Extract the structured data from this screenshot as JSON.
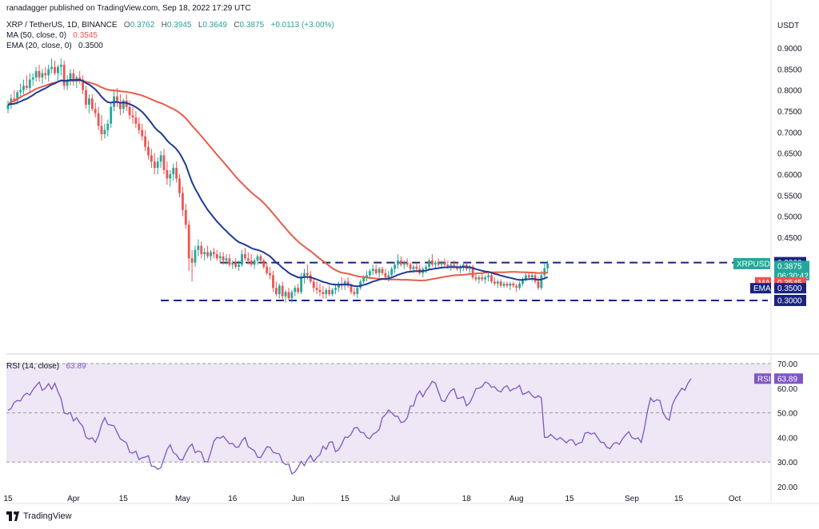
{
  "publisher": "ranadagger published on TradingView.com, Sep 18, 2022 17:29 UTC",
  "legend": {
    "symbol": "XRP / TetherUS, 1D, BINANCE",
    "o_label": "O",
    "o": "0.3762",
    "h_label": "H",
    "h": "0.3945",
    "l_label": "L",
    "l": "0.3649",
    "c_label": "C",
    "c": "0.3875",
    "change": "+0.0113 (+3.00%)",
    "ma_label": "MA (50, close, 0)",
    "ma_value": "0.3545",
    "ema_label": "EMA (20, close, 0)",
    "ema_value": "0.3500",
    "rsi_label": "RSI (14, close)",
    "rsi_value": "63.89"
  },
  "footer": {
    "brand": "TradingView"
  },
  "colors": {
    "up": "#26a69a",
    "down": "#ef5350",
    "ma": "#e85c4a",
    "ema": "#1f3a93",
    "rsi": "#7e57c2",
    "rsi_band": "#ede7f6"
  },
  "chart_data": {
    "type": "candlestick",
    "symbol": "XRPUSDT",
    "currency": "USDT",
    "x_axis_ticks": [
      "15",
      "Apr",
      "15",
      "May",
      "16",
      "Jun",
      "15",
      "Jul",
      "18",
      "Aug",
      "15",
      "Sep",
      "15",
      "Oct"
    ],
    "price_axis_ticks": [
      "0.9000",
      "0.8500",
      "0.8000",
      "0.7500",
      "0.7000",
      "0.6500",
      "0.6000",
      "0.5500",
      "0.5000",
      "0.4500"
    ],
    "price_range": [
      0.27,
      0.92
    ],
    "price_labels": [
      {
        "text": "0.3900",
        "value": 0.39,
        "style": "level"
      },
      {
        "text": "XRPUSDT",
        "value": 0.3875,
        "style": "symbol"
      },
      {
        "text": "0.3875",
        "value": 0.3875,
        "style": "last"
      },
      {
        "text": "06:30:42",
        "value": 0.3875,
        "style": "timer"
      },
      {
        "text": "MA",
        "value": 0.3545,
        "style": "ma_tag"
      },
      {
        "text": "0.3545",
        "value": 0.3545,
        "style": "ma"
      },
      {
        "text": "EMA",
        "value": 0.35,
        "style": "ema_tag"
      },
      {
        "text": "0.3500",
        "value": 0.35,
        "style": "ema"
      },
      {
        "text": "0.3000",
        "value": 0.3,
        "style": "level"
      }
    ],
    "levels": [
      {
        "value": 0.39,
        "from_day": 68,
        "style": "dashed"
      },
      {
        "value": 0.3,
        "from_day": 49,
        "style": "dashed"
      }
    ],
    "rsi": {
      "axis_ticks": [
        "70.00",
        "60.00",
        "50.00",
        "40.00",
        "30.00",
        "20.00"
      ],
      "range": [
        18,
        72
      ],
      "band": [
        30,
        70
      ],
      "mid": 50,
      "label": "RSI",
      "value_text": "63.89",
      "keypoints": [
        [
          0,
          51
        ],
        [
          3,
          55
        ],
        [
          6,
          58
        ],
        [
          9,
          61
        ],
        [
          12,
          60
        ],
        [
          15,
          62
        ],
        [
          18,
          50
        ],
        [
          22,
          48
        ],
        [
          25,
          40
        ],
        [
          28,
          38
        ],
        [
          31,
          48
        ],
        [
          35,
          42
        ],
        [
          39,
          34
        ],
        [
          44,
          32
        ],
        [
          48,
          27
        ],
        [
          52,
          37
        ],
        [
          55,
          31
        ],
        [
          58,
          36
        ],
        [
          62,
          34
        ],
        [
          64,
          30
        ],
        [
          67,
          40
        ],
        [
          70,
          39
        ],
        [
          73,
          36
        ],
        [
          76,
          40
        ],
        [
          80,
          32
        ],
        [
          84,
          36
        ],
        [
          88,
          30
        ],
        [
          92,
          26
        ],
        [
          96,
          31
        ],
        [
          100,
          33
        ],
        [
          103,
          38
        ],
        [
          106,
          35
        ],
        [
          109,
          40
        ],
        [
          112,
          44
        ],
        [
          115,
          40
        ],
        [
          118,
          42
        ],
        [
          120,
          48
        ],
        [
          123,
          50
        ],
        [
          126,
          46
        ],
        [
          128,
          48
        ],
        [
          131,
          57
        ],
        [
          134,
          59
        ],
        [
          137,
          62
        ],
        [
          139,
          55
        ],
        [
          142,
          59
        ],
        [
          145,
          56
        ],
        [
          148,
          54
        ],
        [
          151,
          60
        ],
        [
          154,
          62
        ],
        [
          157,
          59
        ],
        [
          160,
          61
        ],
        [
          163,
          60
        ],
        [
          166,
          58
        ],
        [
          168,
          57
        ],
        [
          171,
          56
        ],
        [
          172,
          40
        ],
        [
          175,
          40
        ],
        [
          178,
          39
        ],
        [
          181,
          39
        ],
        [
          184,
          38
        ],
        [
          186,
          42
        ],
        [
          189,
          40
        ],
        [
          192,
          36
        ],
        [
          195,
          38
        ],
        [
          198,
          41
        ],
        [
          200,
          40
        ],
        [
          203,
          38
        ],
        [
          206,
          56
        ],
        [
          209,
          55
        ],
        [
          210,
          50
        ],
        [
          212,
          47
        ],
        [
          214,
          56
        ],
        [
          216,
          60
        ],
        [
          218,
          62
        ],
        [
          219,
          63.89
        ]
      ]
    },
    "ohlc": [
      [
        0.755,
        0.775,
        0.745,
        0.765
      ],
      [
        0.765,
        0.79,
        0.755,
        0.78
      ],
      [
        0.78,
        0.8,
        0.77,
        0.775
      ],
      [
        0.775,
        0.8,
        0.765,
        0.795
      ],
      [
        0.795,
        0.815,
        0.78,
        0.8
      ],
      [
        0.8,
        0.825,
        0.79,
        0.81
      ],
      [
        0.81,
        0.835,
        0.8,
        0.805
      ],
      [
        0.805,
        0.84,
        0.795,
        0.825
      ],
      [
        0.825,
        0.84,
        0.81,
        0.83
      ],
      [
        0.83,
        0.855,
        0.82,
        0.845
      ],
      [
        0.845,
        0.86,
        0.82,
        0.83
      ],
      [
        0.83,
        0.85,
        0.815,
        0.84
      ],
      [
        0.84,
        0.855,
        0.825,
        0.835
      ],
      [
        0.835,
        0.86,
        0.82,
        0.85
      ],
      [
        0.85,
        0.875,
        0.84,
        0.855
      ],
      [
        0.855,
        0.87,
        0.835,
        0.84
      ],
      [
        0.84,
        0.86,
        0.82,
        0.855
      ],
      [
        0.855,
        0.875,
        0.835,
        0.86
      ],
      [
        0.86,
        0.87,
        0.8,
        0.81
      ],
      [
        0.81,
        0.835,
        0.8,
        0.825
      ],
      [
        0.825,
        0.85,
        0.81,
        0.84
      ],
      [
        0.84,
        0.85,
        0.81,
        0.82
      ],
      [
        0.82,
        0.835,
        0.805,
        0.83
      ],
      [
        0.83,
        0.845,
        0.815,
        0.825
      ],
      [
        0.825,
        0.835,
        0.79,
        0.8
      ],
      [
        0.8,
        0.81,
        0.755,
        0.765
      ],
      [
        0.765,
        0.79,
        0.745,
        0.78
      ],
      [
        0.78,
        0.79,
        0.75,
        0.755
      ],
      [
        0.755,
        0.77,
        0.735,
        0.745
      ],
      [
        0.745,
        0.76,
        0.705,
        0.715
      ],
      [
        0.715,
        0.74,
        0.68,
        0.695
      ],
      [
        0.695,
        0.72,
        0.685,
        0.705
      ],
      [
        0.705,
        0.73,
        0.69,
        0.72
      ],
      [
        0.72,
        0.77,
        0.71,
        0.76
      ],
      [
        0.76,
        0.8,
        0.75,
        0.785
      ],
      [
        0.785,
        0.805,
        0.76,
        0.77
      ],
      [
        0.77,
        0.79,
        0.74,
        0.755
      ],
      [
        0.755,
        0.78,
        0.745,
        0.775
      ],
      [
        0.775,
        0.79,
        0.75,
        0.76
      ],
      [
        0.76,
        0.775,
        0.73,
        0.74
      ],
      [
        0.74,
        0.76,
        0.72,
        0.735
      ],
      [
        0.735,
        0.75,
        0.71,
        0.72
      ],
      [
        0.72,
        0.735,
        0.695,
        0.705
      ],
      [
        0.705,
        0.72,
        0.68,
        0.69
      ],
      [
        0.69,
        0.705,
        0.655,
        0.665
      ],
      [
        0.665,
        0.68,
        0.635,
        0.645
      ],
      [
        0.645,
        0.66,
        0.615,
        0.63
      ],
      [
        0.63,
        0.65,
        0.6,
        0.615
      ],
      [
        0.615,
        0.64,
        0.6,
        0.63
      ],
      [
        0.63,
        0.655,
        0.615,
        0.645
      ],
      [
        0.645,
        0.66,
        0.6,
        0.61
      ],
      [
        0.61,
        0.63,
        0.575,
        0.59
      ],
      [
        0.59,
        0.61,
        0.57,
        0.6
      ],
      [
        0.6,
        0.625,
        0.585,
        0.615
      ],
      [
        0.615,
        0.63,
        0.58,
        0.59
      ],
      [
        0.59,
        0.6,
        0.545,
        0.555
      ],
      [
        0.555,
        0.57,
        0.5,
        0.515
      ],
      [
        0.515,
        0.53,
        0.47,
        0.48
      ],
      [
        0.48,
        0.49,
        0.37,
        0.4
      ],
      [
        0.4,
        0.42,
        0.345,
        0.39
      ],
      [
        0.39,
        0.43,
        0.38,
        0.42
      ],
      [
        0.42,
        0.445,
        0.405,
        0.43
      ],
      [
        0.43,
        0.44,
        0.4,
        0.41
      ],
      [
        0.41,
        0.425,
        0.395,
        0.415
      ],
      [
        0.415,
        0.43,
        0.4,
        0.405
      ],
      [
        0.405,
        0.42,
        0.395,
        0.415
      ],
      [
        0.415,
        0.425,
        0.4,
        0.41
      ],
      [
        0.41,
        0.42,
        0.395,
        0.4
      ],
      [
        0.4,
        0.415,
        0.39,
        0.405
      ],
      [
        0.405,
        0.415,
        0.385,
        0.395
      ],
      [
        0.395,
        0.41,
        0.385,
        0.4
      ],
      [
        0.4,
        0.41,
        0.38,
        0.385
      ],
      [
        0.385,
        0.395,
        0.375,
        0.39
      ],
      [
        0.39,
        0.4,
        0.375,
        0.38
      ],
      [
        0.38,
        0.395,
        0.37,
        0.385
      ],
      [
        0.385,
        0.42,
        0.38,
        0.41
      ],
      [
        0.41,
        0.425,
        0.395,
        0.4
      ],
      [
        0.4,
        0.415,
        0.385,
        0.395
      ],
      [
        0.395,
        0.41,
        0.38,
        0.385
      ],
      [
        0.385,
        0.4,
        0.375,
        0.395
      ],
      [
        0.395,
        0.41,
        0.385,
        0.405
      ],
      [
        0.405,
        0.41,
        0.39,
        0.395
      ],
      [
        0.395,
        0.4,
        0.375,
        0.38
      ],
      [
        0.38,
        0.39,
        0.36,
        0.365
      ],
      [
        0.365,
        0.38,
        0.35,
        0.36
      ],
      [
        0.36,
        0.37,
        0.32,
        0.33
      ],
      [
        0.33,
        0.345,
        0.31,
        0.315
      ],
      [
        0.315,
        0.34,
        0.305,
        0.335
      ],
      [
        0.335,
        0.345,
        0.3,
        0.31
      ],
      [
        0.31,
        0.325,
        0.295,
        0.32
      ],
      [
        0.32,
        0.33,
        0.3,
        0.305
      ],
      [
        0.305,
        0.325,
        0.295,
        0.32
      ],
      [
        0.32,
        0.335,
        0.31,
        0.33
      ],
      [
        0.33,
        0.34,
        0.315,
        0.32
      ],
      [
        0.32,
        0.365,
        0.315,
        0.355
      ],
      [
        0.355,
        0.375,
        0.34,
        0.365
      ],
      [
        0.365,
        0.385,
        0.35,
        0.36
      ],
      [
        0.36,
        0.37,
        0.34,
        0.345
      ],
      [
        0.345,
        0.355,
        0.32,
        0.33
      ],
      [
        0.33,
        0.345,
        0.315,
        0.325
      ],
      [
        0.325,
        0.34,
        0.31,
        0.32
      ],
      [
        0.32,
        0.335,
        0.305,
        0.315
      ],
      [
        0.315,
        0.33,
        0.305,
        0.325
      ],
      [
        0.325,
        0.335,
        0.31,
        0.315
      ],
      [
        0.315,
        0.33,
        0.31,
        0.325
      ],
      [
        0.325,
        0.34,
        0.315,
        0.33
      ],
      [
        0.33,
        0.345,
        0.32,
        0.34
      ],
      [
        0.34,
        0.355,
        0.325,
        0.335
      ],
      [
        0.335,
        0.35,
        0.325,
        0.345
      ],
      [
        0.345,
        0.355,
        0.33,
        0.335
      ],
      [
        0.335,
        0.34,
        0.315,
        0.32
      ],
      [
        0.32,
        0.33,
        0.31,
        0.315
      ],
      [
        0.315,
        0.335,
        0.305,
        0.33
      ],
      [
        0.33,
        0.35,
        0.325,
        0.345
      ],
      [
        0.345,
        0.36,
        0.34,
        0.355
      ],
      [
        0.355,
        0.37,
        0.345,
        0.36
      ],
      [
        0.36,
        0.375,
        0.35,
        0.37
      ],
      [
        0.37,
        0.385,
        0.36,
        0.375
      ],
      [
        0.375,
        0.385,
        0.36,
        0.365
      ],
      [
        0.365,
        0.38,
        0.355,
        0.375
      ],
      [
        0.375,
        0.38,
        0.36,
        0.365
      ],
      [
        0.365,
        0.375,
        0.35,
        0.355
      ],
      [
        0.355,
        0.37,
        0.345,
        0.36
      ],
      [
        0.36,
        0.38,
        0.355,
        0.375
      ],
      [
        0.375,
        0.39,
        0.365,
        0.385
      ],
      [
        0.385,
        0.41,
        0.375,
        0.395
      ],
      [
        0.395,
        0.405,
        0.38,
        0.385
      ],
      [
        0.385,
        0.395,
        0.375,
        0.39
      ],
      [
        0.39,
        0.4,
        0.38,
        0.385
      ],
      [
        0.385,
        0.39,
        0.37,
        0.375
      ],
      [
        0.375,
        0.385,
        0.365,
        0.38
      ],
      [
        0.38,
        0.39,
        0.37,
        0.375
      ],
      [
        0.375,
        0.385,
        0.36,
        0.365
      ],
      [
        0.365,
        0.38,
        0.355,
        0.375
      ],
      [
        0.375,
        0.385,
        0.365,
        0.38
      ],
      [
        0.38,
        0.4,
        0.375,
        0.395
      ],
      [
        0.395,
        0.41,
        0.38,
        0.385
      ],
      [
        0.385,
        0.395,
        0.375,
        0.39
      ],
      [
        0.39,
        0.4,
        0.38,
        0.385
      ],
      [
        0.385,
        0.395,
        0.375,
        0.39
      ],
      [
        0.39,
        0.4,
        0.38,
        0.385
      ],
      [
        0.385,
        0.395,
        0.375,
        0.38
      ],
      [
        0.38,
        0.39,
        0.37,
        0.385
      ],
      [
        0.385,
        0.395,
        0.375,
        0.38
      ],
      [
        0.38,
        0.39,
        0.37,
        0.375
      ],
      [
        0.375,
        0.385,
        0.365,
        0.38
      ],
      [
        0.38,
        0.39,
        0.37,
        0.385
      ],
      [
        0.385,
        0.39,
        0.37,
        0.375
      ],
      [
        0.375,
        0.385,
        0.365,
        0.38
      ],
      [
        0.38,
        0.385,
        0.35,
        0.355
      ],
      [
        0.355,
        0.365,
        0.345,
        0.35
      ],
      [
        0.35,
        0.36,
        0.34,
        0.355
      ],
      [
        0.355,
        0.365,
        0.345,
        0.35
      ],
      [
        0.35,
        0.36,
        0.34,
        0.355
      ],
      [
        0.355,
        0.365,
        0.345,
        0.36
      ],
      [
        0.36,
        0.365,
        0.34,
        0.345
      ],
      [
        0.345,
        0.355,
        0.335,
        0.34
      ],
      [
        0.34,
        0.35,
        0.33,
        0.345
      ],
      [
        0.345,
        0.35,
        0.33,
        0.335
      ],
      [
        0.335,
        0.345,
        0.33,
        0.34
      ],
      [
        0.34,
        0.345,
        0.33,
        0.335
      ],
      [
        0.335,
        0.345,
        0.325,
        0.34
      ],
      [
        0.34,
        0.345,
        0.33,
        0.335
      ],
      [
        0.335,
        0.34,
        0.32,
        0.33
      ],
      [
        0.33,
        0.345,
        0.325,
        0.34
      ],
      [
        0.34,
        0.355,
        0.335,
        0.35
      ],
      [
        0.35,
        0.365,
        0.345,
        0.36
      ],
      [
        0.36,
        0.365,
        0.35,
        0.355
      ],
      [
        0.355,
        0.365,
        0.345,
        0.36
      ],
      [
        0.36,
        0.365,
        0.34,
        0.345
      ],
      [
        0.345,
        0.355,
        0.325,
        0.33
      ],
      [
        0.33,
        0.37,
        0.325,
        0.36
      ],
      [
        0.36,
        0.39,
        0.35,
        0.3762
      ],
      [
        0.3762,
        0.3945,
        0.3649,
        0.3875
      ]
    ]
  }
}
